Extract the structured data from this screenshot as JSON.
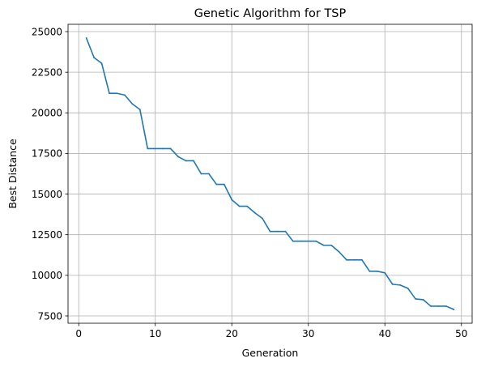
{
  "chart_data": {
    "type": "line",
    "title": "Genetic Algorithm for TSP",
    "xlabel": "Generation",
    "ylabel": "Best Distance",
    "xlim": [
      -1.4,
      51.4
    ],
    "ylim": [
      7050,
      25450
    ],
    "xticks": [
      0,
      10,
      20,
      30,
      40,
      50
    ],
    "yticks": [
      7500,
      10000,
      12500,
      15000,
      17500,
      20000,
      22500,
      25000
    ],
    "xtick_labels": [
      "0",
      "10",
      "20",
      "30",
      "40",
      "50"
    ],
    "ytick_labels": [
      "7500",
      "10000",
      "12500",
      "15000",
      "17500",
      "20000",
      "22500",
      "25000"
    ],
    "grid": true,
    "series": [
      {
        "color": "#1f77b4",
        "x": [
          1,
          2,
          3,
          4,
          5,
          6,
          7,
          8,
          9,
          10,
          11,
          12,
          13,
          14,
          15,
          16,
          17,
          18,
          19,
          20,
          21,
          22,
          23,
          24,
          25,
          26,
          27,
          28,
          29,
          30,
          31,
          32,
          33,
          34,
          35,
          36,
          37,
          38,
          39,
          40,
          41,
          42,
          43,
          44,
          45,
          46,
          47,
          48,
          49
        ],
        "y": [
          24600,
          23400,
          23050,
          21200,
          21200,
          21100,
          20550,
          20200,
          17800,
          17800,
          17800,
          17800,
          17300,
          17050,
          17050,
          16250,
          16250,
          15600,
          15600,
          14650,
          14250,
          14250,
          13850,
          13500,
          12700,
          12700,
          12700,
          12100,
          12100,
          12100,
          12100,
          11850,
          11850,
          11450,
          10950,
          10950,
          10950,
          10250,
          10250,
          10150,
          9450,
          9400,
          9200,
          8550,
          8500,
          8100,
          8100,
          8100,
          7900
        ]
      }
    ]
  }
}
